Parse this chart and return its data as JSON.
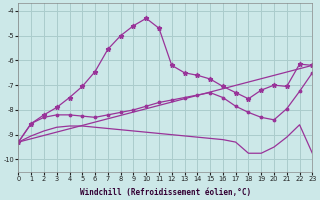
{
  "xlabel": "Windchill (Refroidissement éolien,°C)",
  "bg_color": "#cce8e8",
  "grid_color": "#aacccc",
  "line_color": "#993399",
  "xlim": [
    0,
    23
  ],
  "ylim": [
    -10.5,
    -3.7
  ],
  "yticks": [
    -10,
    -9,
    -8,
    -7,
    -6,
    -5,
    -4
  ],
  "xticks": [
    0,
    1,
    2,
    3,
    4,
    5,
    6,
    7,
    8,
    9,
    10,
    11,
    12,
    13,
    14,
    15,
    16,
    17,
    18,
    19,
    20,
    21,
    22,
    23
  ],
  "series": [
    {
      "x": [
        0,
        1,
        2,
        3,
        4,
        5,
        6,
        7,
        8,
        9,
        10,
        11,
        12,
        13,
        14,
        15,
        16,
        17,
        18,
        19,
        20,
        21,
        22,
        23
      ],
      "y": [
        -9.3,
        -8.55,
        -8.2,
        -7.9,
        -7.5,
        -7.05,
        -6.45,
        -5.55,
        -5.0,
        -4.6,
        -4.3,
        -4.7,
        -6.2,
        -6.5,
        -6.6,
        -6.75,
        -7.05,
        -7.3,
        -7.55,
        -7.2,
        -7.0,
        -7.05,
        -6.15,
        -6.2
      ],
      "style": "-",
      "marker": "*",
      "markersize": 3.5,
      "linewidth": 0.9
    },
    {
      "x": [
        0,
        1,
        2,
        3,
        4,
        5,
        6,
        7,
        8,
        9,
        10,
        11,
        12,
        13,
        14,
        15,
        16,
        17,
        18,
        19,
        20,
        21,
        22,
        23
      ],
      "y": [
        -9.3,
        -8.55,
        -8.3,
        -8.2,
        -8.2,
        -8.25,
        -8.3,
        -8.2,
        -8.1,
        -8.0,
        -7.85,
        -7.7,
        -7.6,
        -7.5,
        -7.4,
        -7.3,
        -7.5,
        -7.85,
        -8.1,
        -8.3,
        -8.4,
        -7.95,
        -7.25,
        -6.5
      ],
      "style": "-",
      "marker": ".",
      "markersize": 3.5,
      "linewidth": 0.9
    },
    {
      "x": [
        0,
        23
      ],
      "y": [
        -9.3,
        -6.2
      ],
      "style": "-",
      "marker": null,
      "markersize": 0,
      "linewidth": 0.9
    },
    {
      "x": [
        0,
        1,
        2,
        3,
        4,
        5,
        6,
        7,
        8,
        9,
        10,
        11,
        12,
        13,
        14,
        15,
        16,
        17,
        18,
        19,
        20,
        21,
        22,
        23
      ],
      "y": [
        -9.3,
        -9.05,
        -8.85,
        -8.7,
        -8.65,
        -8.65,
        -8.7,
        -8.75,
        -8.8,
        -8.85,
        -8.9,
        -8.95,
        -9.0,
        -9.05,
        -9.1,
        -9.15,
        -9.2,
        -9.3,
        -9.75,
        -9.75,
        -9.5,
        -9.1,
        -8.6,
        -9.75
      ],
      "style": "-",
      "marker": null,
      "markersize": 0,
      "linewidth": 0.9
    }
  ]
}
